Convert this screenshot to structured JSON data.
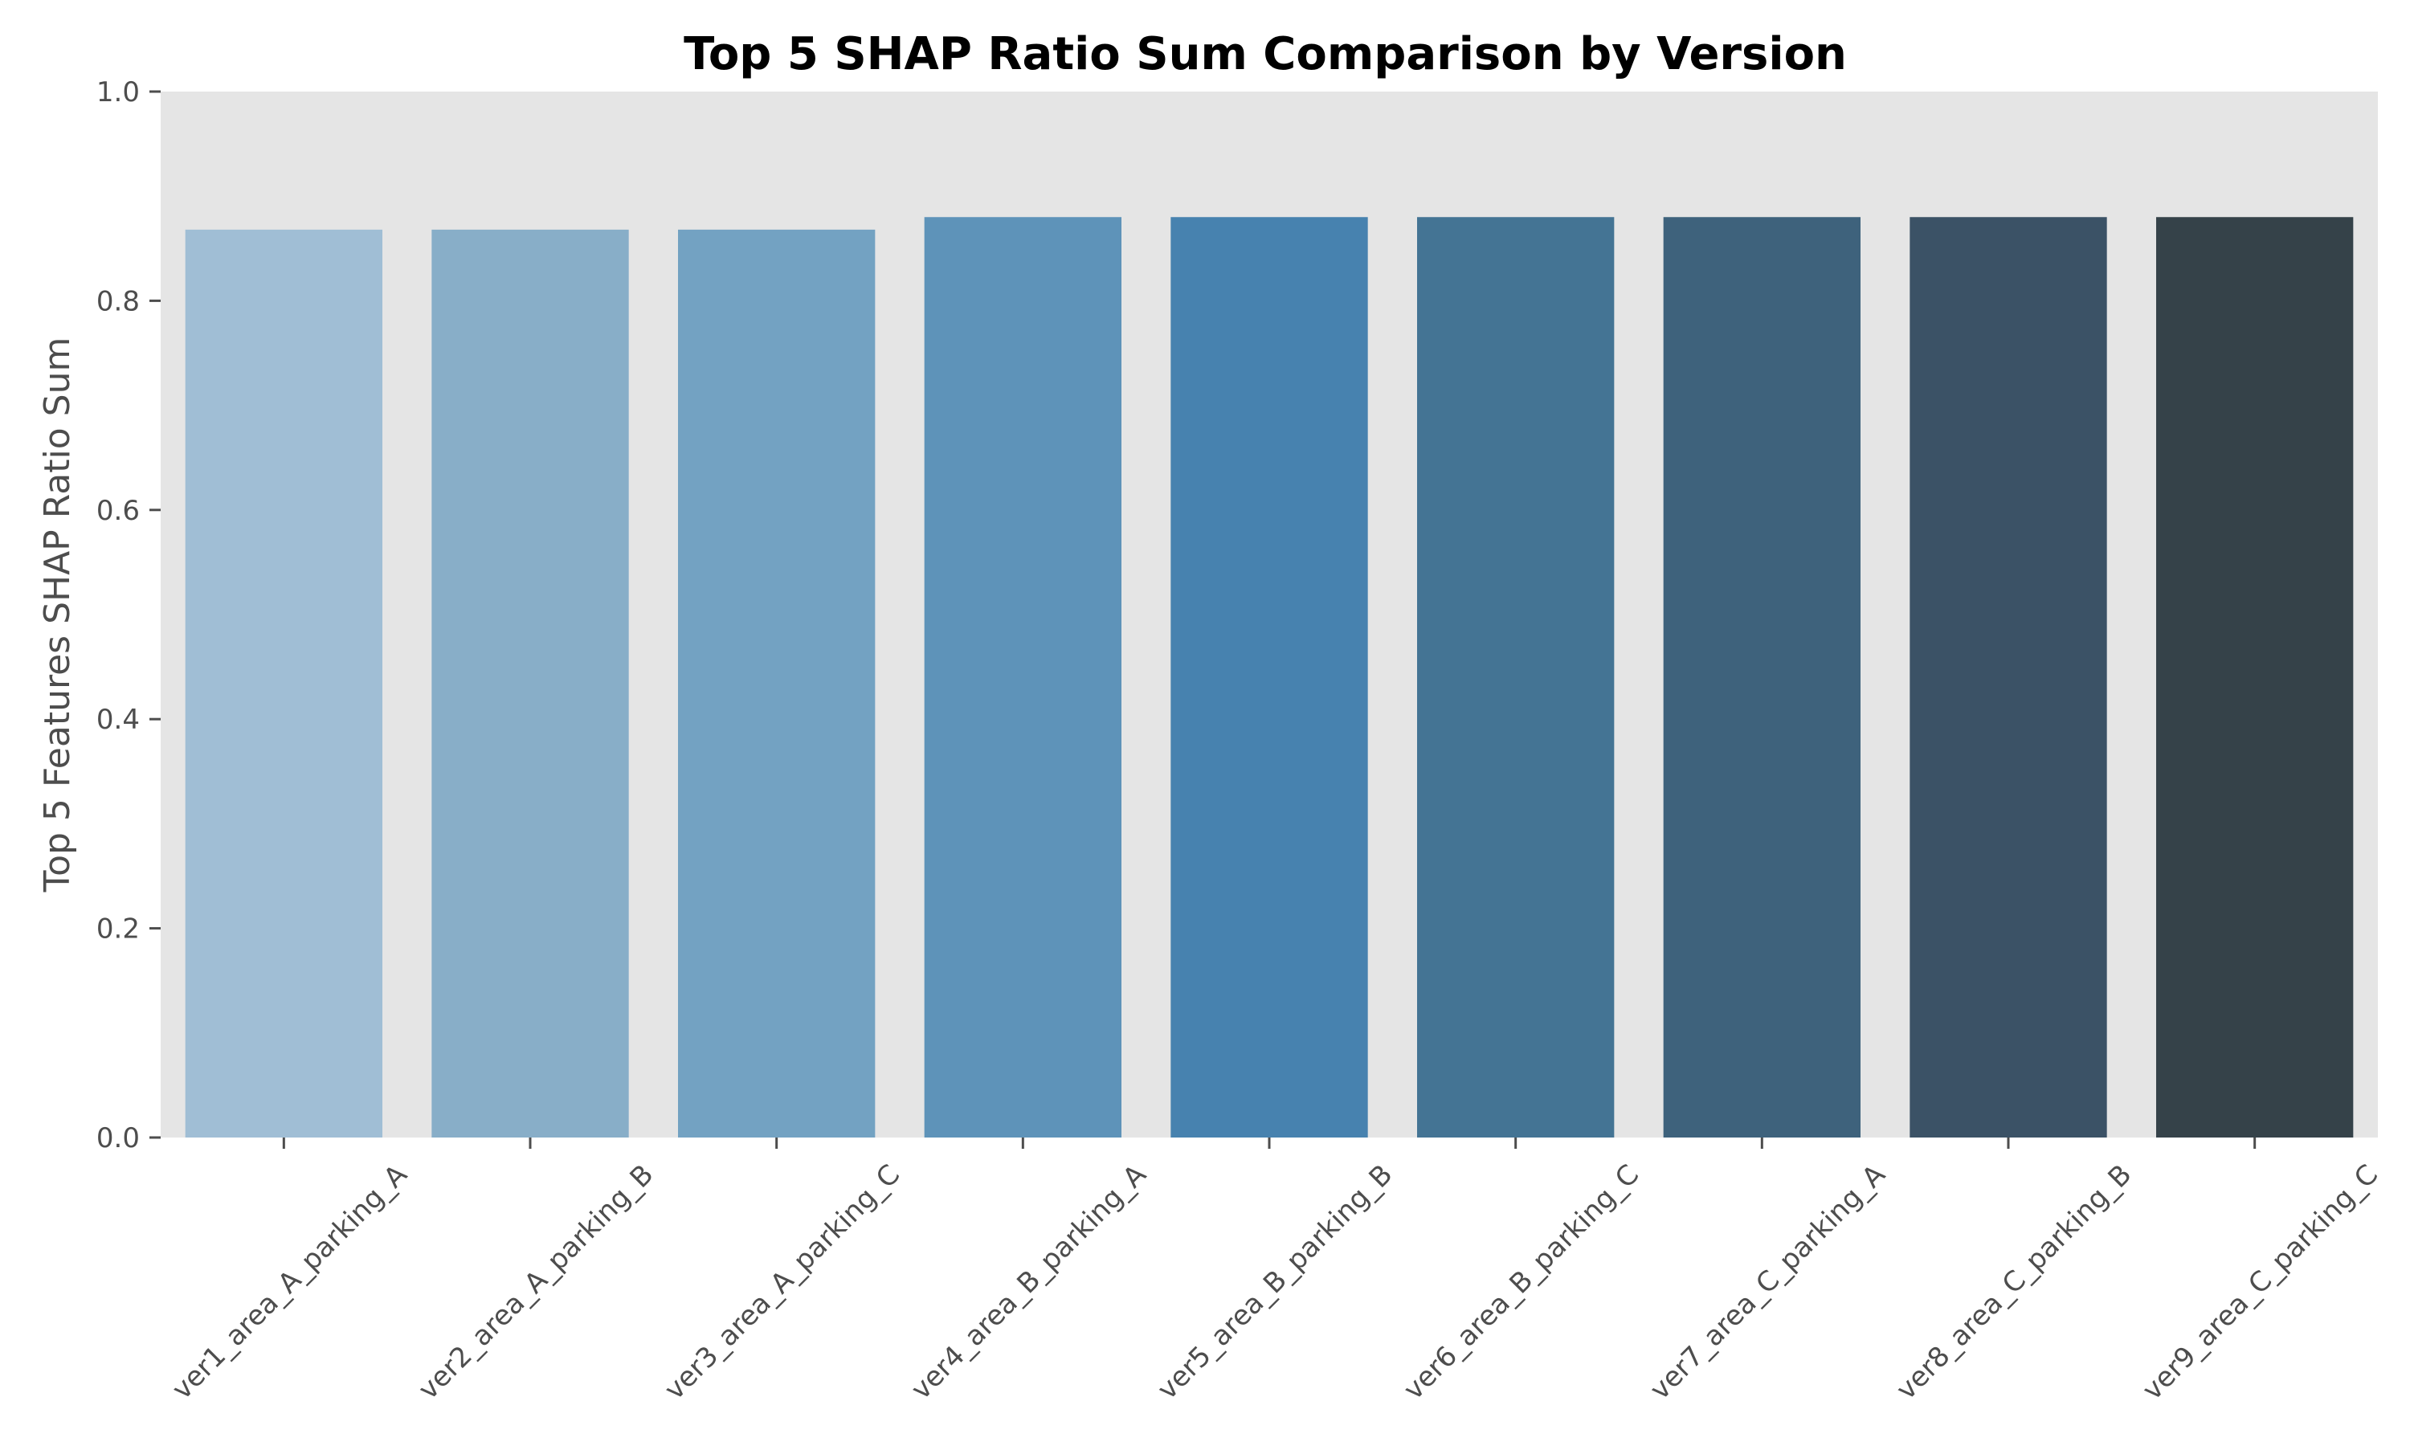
{
  "chart_data": {
    "type": "bar",
    "title": "Top 5 SHAP Ratio Sum Comparison by Version",
    "xlabel": "",
    "ylabel": "Top 5 Features SHAP Ratio Sum",
    "ylim": [
      0,
      1.0
    ],
    "yticks": [
      "0.0",
      "0.2",
      "0.4",
      "0.6",
      "0.8",
      "1.0"
    ],
    "grid": false,
    "plot_background": "#e5e5e5",
    "categories": [
      "ver1_area_A_parking_A",
      "ver2_area_A_parking_B",
      "ver3_area_A_parking_C",
      "ver4_area_B_parking_A",
      "ver5_area_B_parking_B",
      "ver6_area_B_parking_C",
      "ver7_area_C_parking_A",
      "ver8_area_C_parking_B",
      "ver9_area_C_parking_C"
    ],
    "values": [
      0.868,
      0.868,
      0.868,
      0.88,
      0.88,
      0.88,
      0.88,
      0.88,
      0.88
    ],
    "colors": [
      "#a0bed5",
      "#88aec8",
      "#73a2c2",
      "#5e93b9",
      "#4782af",
      "#447494",
      "#3e627c",
      "#3b5266",
      "#354249"
    ]
  }
}
